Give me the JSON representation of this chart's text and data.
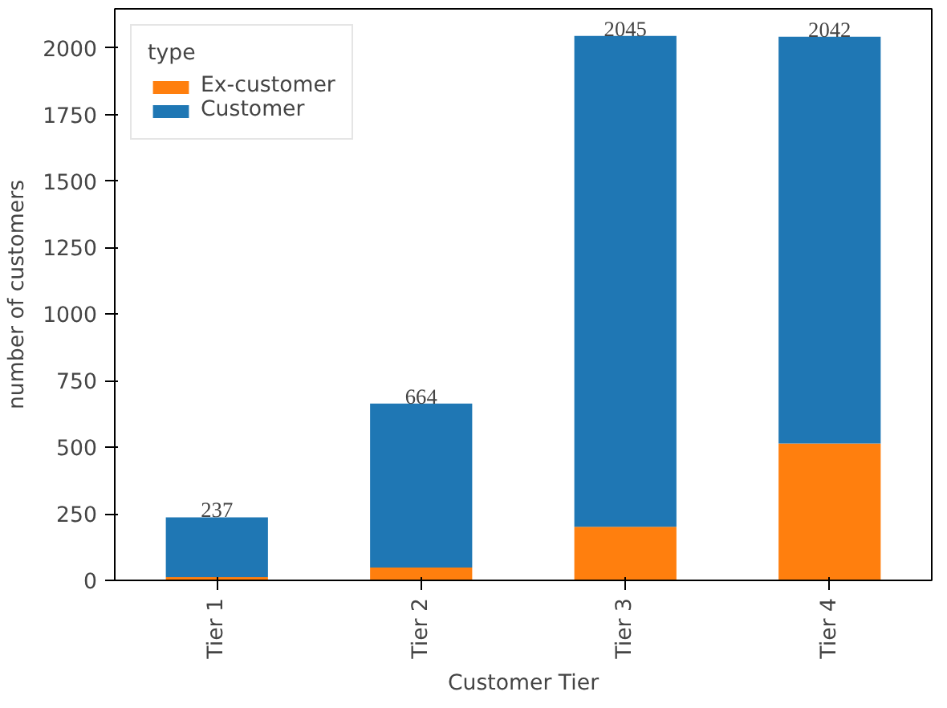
{
  "chart_data": {
    "type": "bar",
    "stacked": true,
    "xlabel": "Customer Tier",
    "ylabel": "number of customers",
    "legend_title": "type",
    "legend": "top left",
    "categories": [
      "Tier 1",
      "Tier 2",
      "Tier 3",
      "Tier 4"
    ],
    "series": [
      {
        "name": "Ex-customer",
        "color": "#ff7f0e",
        "values": [
          12,
          48,
          201,
          514
        ]
      },
      {
        "name": "Customer",
        "color": "#1f77b4",
        "values": [
          225,
          616,
          1844,
          1528
        ]
      }
    ],
    "totals": [
      "237",
      "664",
      "2045",
      "2042"
    ],
    "ylim": [
      0,
      2147
    ],
    "yticks": [
      0,
      250,
      500,
      750,
      1000,
      1250,
      1500,
      1750,
      2000
    ],
    "grid": false
  }
}
